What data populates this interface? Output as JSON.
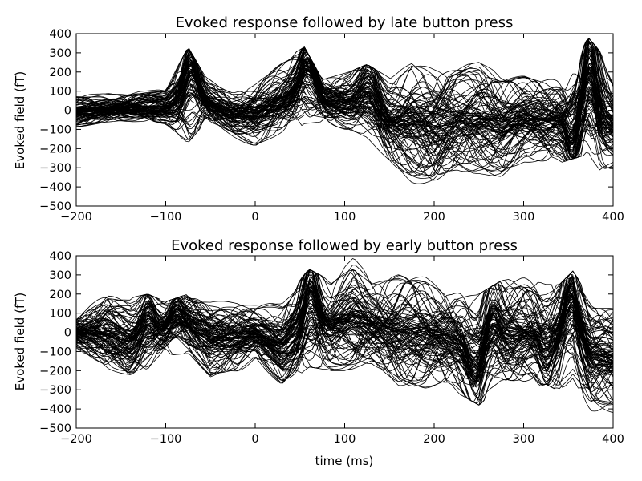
{
  "chart_data": [
    {
      "type": "line",
      "title": "Evoked response followed by late button press",
      "xlabel": "",
      "ylabel": "Evoked field (fT)",
      "xlim": [
        -200,
        400
      ],
      "ylim": [
        -500,
        400
      ],
      "x_ticks": [
        -200,
        -100,
        0,
        100,
        200,
        300,
        400
      ],
      "y_ticks": [
        -500,
        -400,
        -300,
        -200,
        -100,
        0,
        100,
        200,
        300,
        400
      ],
      "x_tick_labels": [
        "−200",
        "−100",
        "0",
        "100",
        "200",
        "300",
        "400"
      ],
      "y_tick_labels": [
        "−500",
        "−400",
        "−300",
        "−200",
        "−100",
        "0",
        "100",
        "200",
        "300",
        "400"
      ],
      "grid": false,
      "legend": "none",
      "series_count": 100,
      "series_color": "#000000",
      "envelope": {
        "x": [
          -200,
          -150,
          -100,
          -75,
          -55,
          -25,
          0,
          30,
          55,
          75,
          105,
          125,
          150,
          175,
          200,
          225,
          250,
          275,
          300,
          325,
          350,
          372,
          385,
          400
        ],
        "min": [
          -90,
          -70,
          -80,
          -170,
          -60,
          -140,
          -200,
          -150,
          -70,
          -60,
          -120,
          -170,
          -300,
          -380,
          -410,
          -330,
          -330,
          -350,
          -280,
          -300,
          -260,
          -230,
          -350,
          -320
        ],
        "max": [
          80,
          90,
          110,
          330,
          170,
          110,
          160,
          260,
          330,
          160,
          200,
          240,
          170,
          280,
          240,
          230,
          250,
          190,
          210,
          190,
          170,
          380,
          310,
          170
        ]
      },
      "events": [
        {
          "x": -72,
          "amplitude": 210,
          "width": 10
        },
        {
          "x": 60,
          "amplitude": 180,
          "width": 12
        },
        {
          "x": 128,
          "amplitude": 150,
          "width": 14
        },
        {
          "x": 375,
          "amplitude": 270,
          "width": 9
        },
        {
          "x": 355,
          "amplitude": -180,
          "width": 9
        }
      ]
    },
    {
      "type": "line",
      "title": "Evoked response followed by early button press",
      "xlabel": "time (ms)",
      "ylabel": "Evoked field (fT)",
      "xlim": [
        -200,
        400
      ],
      "ylim": [
        -500,
        400
      ],
      "x_ticks": [
        -200,
        -100,
        0,
        100,
        200,
        300,
        400
      ],
      "y_ticks": [
        -500,
        -400,
        -300,
        -200,
        -100,
        0,
        100,
        200,
        300,
        400
      ],
      "x_tick_labels": [
        "−200",
        "−100",
        "0",
        "100",
        "200",
        "300",
        "400"
      ],
      "y_tick_labels": [
        "−500",
        "−400",
        "−300",
        "−200",
        "−100",
        "0",
        "100",
        "200",
        "300",
        "400"
      ],
      "grid": false,
      "legend": "none",
      "series_count": 100,
      "series_color": "#000000",
      "envelope": {
        "x": [
          -200,
          -165,
          -140,
          -120,
          -100,
          -75,
          -50,
          -20,
          0,
          30,
          60,
          85,
          110,
          130,
          160,
          190,
          220,
          250,
          275,
          300,
          325,
          340,
          355,
          375,
          400
        ],
        "min": [
          -90,
          -220,
          -250,
          -200,
          -120,
          -110,
          -250,
          -230,
          -150,
          -300,
          -180,
          -200,
          -200,
          -180,
          -300,
          -320,
          -300,
          -380,
          -290,
          -310,
          -270,
          -310,
          -240,
          -410,
          -420
        ],
        "max": [
          80,
          220,
          180,
          200,
          160,
          200,
          170,
          170,
          150,
          160,
          330,
          270,
          390,
          280,
          320,
          310,
          230,
          200,
          270,
          290,
          250,
          250,
          320,
          180,
          170
        ]
      },
      "events": [
        {
          "x": -120,
          "amplitude": 120,
          "width": 10
        },
        {
          "x": -88,
          "amplitude": 110,
          "width": 10
        },
        {
          "x": 62,
          "amplitude": 240,
          "width": 10
        },
        {
          "x": 245,
          "amplitude": -140,
          "width": 10
        },
        {
          "x": 265,
          "amplitude": 160,
          "width": 10
        },
        {
          "x": 325,
          "amplitude": -150,
          "width": 10
        },
        {
          "x": 352,
          "amplitude": 220,
          "width": 10
        }
      ]
    }
  ]
}
